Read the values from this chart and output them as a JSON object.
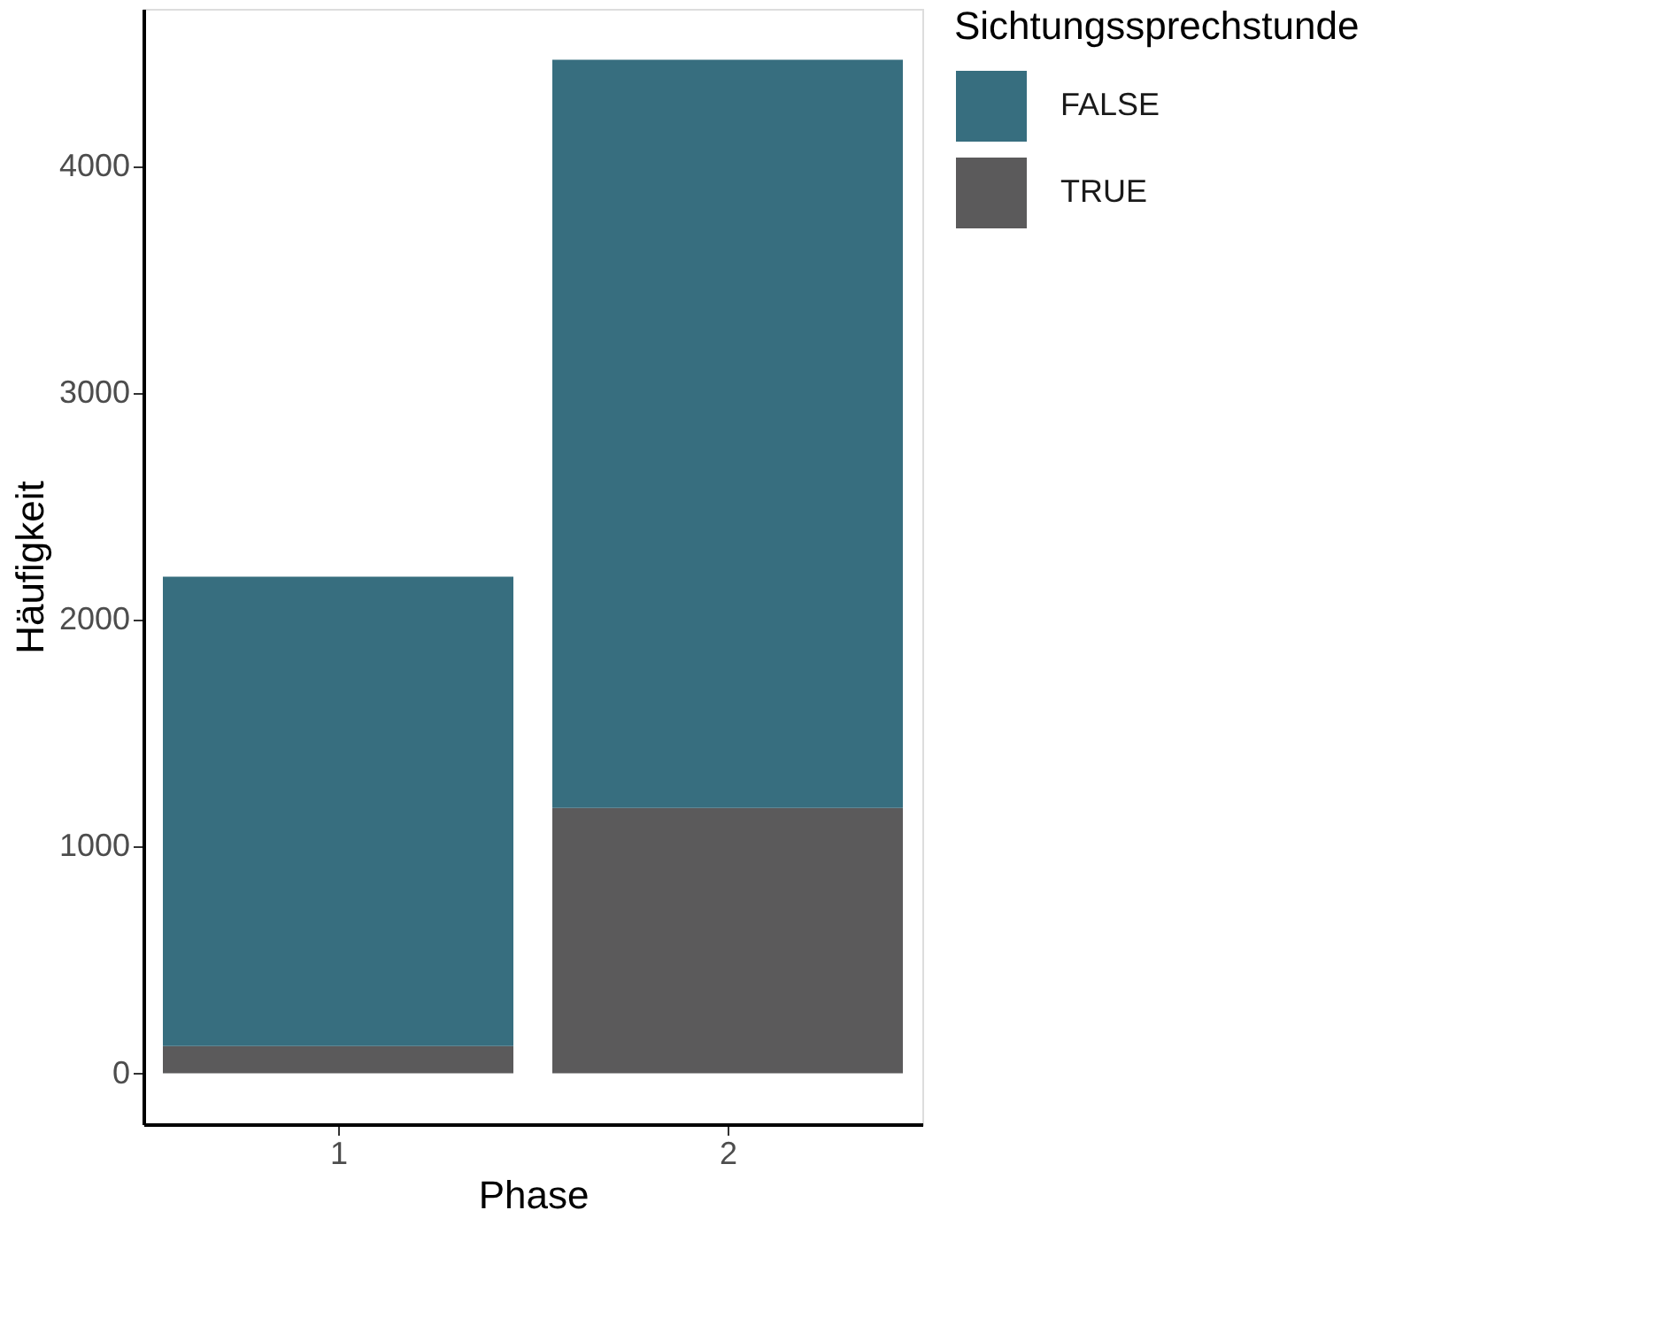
{
  "chart_data": {
    "type": "bar",
    "xlabel": "Phase",
    "ylabel": "Häufigkeit",
    "legend_title": "Sichtungssprechstunde",
    "categories": [
      "1",
      "2"
    ],
    "stacked": true,
    "series": [
      {
        "name": "TRUE",
        "color": "#5b5a5b",
        "values": [
          120,
          1170
        ]
      },
      {
        "name": "FALSE",
        "color": "#376e7f",
        "values": [
          2070,
          3300
        ]
      }
    ],
    "ylim": [
      -224,
      4694
    ],
    "yticks": [
      0,
      1000,
      2000,
      3000,
      4000
    ],
    "grid": false,
    "legend": "right"
  }
}
